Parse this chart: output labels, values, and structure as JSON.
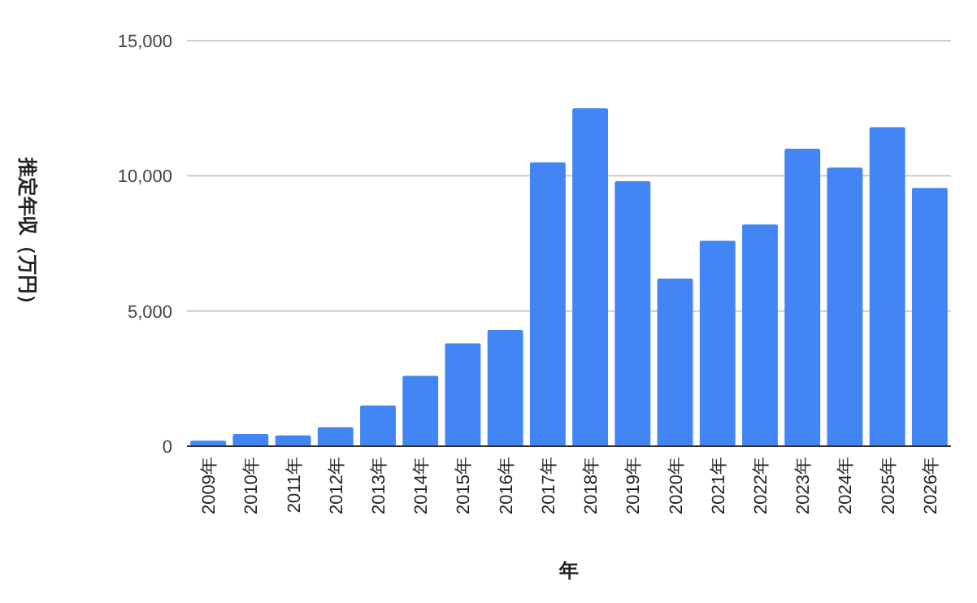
{
  "chart_data": {
    "type": "bar",
    "xlabel": "年",
    "ylabel": "推定年収（万円）",
    "categories": [
      "2009年",
      "2010年",
      "2011年",
      "2012年",
      "2013年",
      "2014年",
      "2015年",
      "2016年",
      "2017年",
      "2018年",
      "2019年",
      "2020年",
      "2021年",
      "2022年",
      "2023年",
      "2024年",
      "2025年",
      "2026年"
    ],
    "values": [
      200,
      450,
      400,
      700,
      1500,
      2600,
      3800,
      4300,
      10500,
      12500,
      9800,
      6200,
      7600,
      8200,
      11000,
      10300,
      11800,
      9550
    ],
    "color": "#4285f4",
    "ylim": [
      0,
      15000
    ],
    "yticks": [
      {
        "value": 0,
        "label": "0"
      },
      {
        "value": 5000,
        "label": "5,000"
      },
      {
        "value": 10000,
        "label": "10,000"
      },
      {
        "value": 15000,
        "label": "15,000"
      }
    ],
    "grid": "y"
  }
}
